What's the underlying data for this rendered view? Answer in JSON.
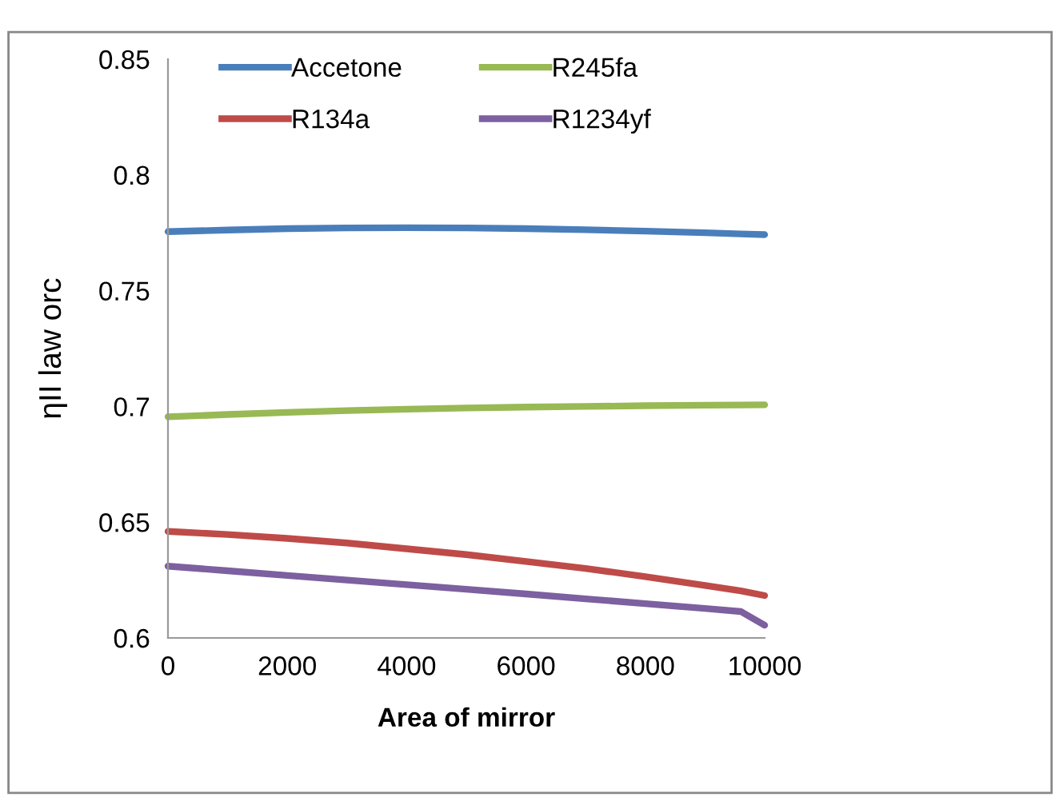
{
  "chart_data": {
    "type": "line",
    "xlabel": "Area of mirror",
    "ylabel": "ηII law orc",
    "x": [
      0,
      1000,
      2000,
      3000,
      4000,
      5000,
      6000,
      7000,
      8000,
      9000,
      9600,
      10000
    ],
    "xlim": [
      0,
      10000
    ],
    "xticks": [
      0,
      2000,
      4000,
      6000,
      8000,
      10000
    ],
    "ylim": [
      0.6,
      0.85
    ],
    "yticks": [
      0.6,
      0.65,
      0.7,
      0.75,
      0.8,
      0.85
    ],
    "grid": false,
    "legend": "top",
    "line_style": "solid",
    "marker": "none",
    "series": [
      {
        "name": "Accetone",
        "color": "#4a7ebb",
        "values": [
          0.7755,
          0.7762,
          0.7768,
          0.7771,
          0.7772,
          0.7771,
          0.7768,
          0.7763,
          0.7757,
          0.775,
          0.7745,
          0.7742
        ]
      },
      {
        "name": "R134a",
        "color": "#be4b48",
        "values": [
          0.646,
          0.6447,
          0.643,
          0.641,
          0.6385,
          0.636,
          0.633,
          0.63,
          0.6265,
          0.6227,
          0.6203,
          0.6183
        ]
      },
      {
        "name": "R245fa",
        "color": "#98b954",
        "values": [
          0.6955,
          0.6965,
          0.6974,
          0.6982,
          0.6988,
          0.6993,
          0.6997,
          0.7,
          0.7003,
          0.7005,
          0.7006,
          0.7007
        ]
      },
      {
        "name": "R1234yf",
        "color": "#7d60a0",
        "values": [
          0.631,
          0.629,
          0.627,
          0.625,
          0.623,
          0.621,
          0.619,
          0.6169,
          0.6148,
          0.6127,
          0.6114,
          0.6055
        ]
      }
    ]
  }
}
